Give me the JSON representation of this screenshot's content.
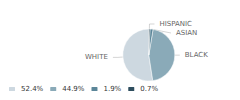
{
  "chart_data": {
    "type": "pie",
    "categories": [
      "WHITE",
      "BLACK",
      "ASIAN",
      "HISPANIC"
    ],
    "values": [
      52.4,
      44.9,
      1.9,
      0.7
    ],
    "colors": [
      "#cdd8e0",
      "#8aaab8",
      "#5b8699",
      "#2e4e5e"
    ],
    "value_labels": [
      "52.4%",
      "44.9%",
      "1.9%",
      "0.7%"
    ],
    "legend": "lower left"
  }
}
